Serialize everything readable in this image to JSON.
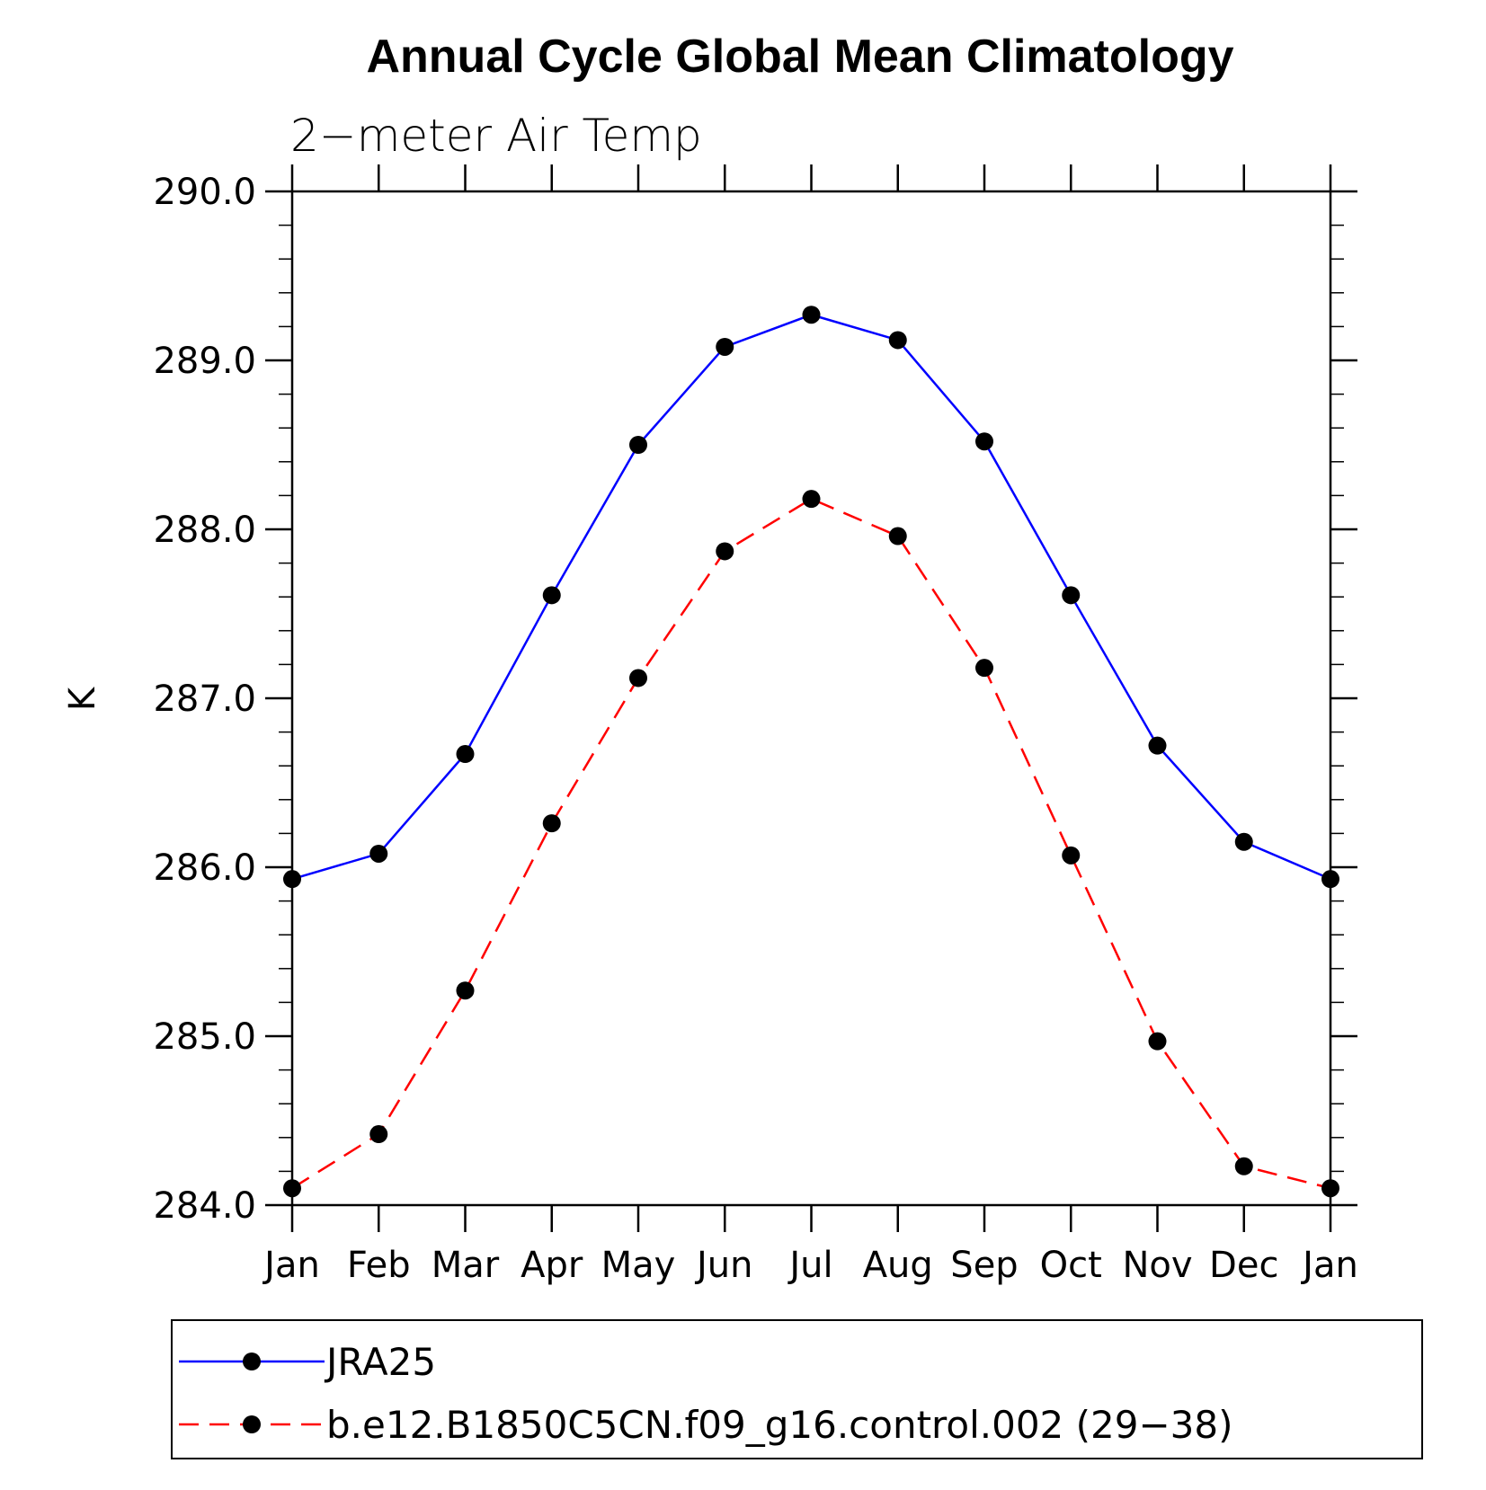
{
  "chart_data": {
    "type": "line",
    "title": "Annual Cycle Global Mean Climatology",
    "subtitle": "2−meter Air Temp",
    "ylabel": "K",
    "xlabel": "",
    "categories": [
      "Jan",
      "Feb",
      "Mar",
      "Apr",
      "May",
      "Jun",
      "Jul",
      "Aug",
      "Sep",
      "Oct",
      "Nov",
      "Dec",
      "Jan"
    ],
    "ylim": [
      284.0,
      290.0
    ],
    "yticks": [
      "284.0",
      "285.0",
      "286.0",
      "287.0",
      "288.0",
      "289.0",
      "290.0"
    ],
    "grid": false,
    "legend_position": "bottom",
    "series": [
      {
        "name": "JRA25",
        "color": "#0000ff",
        "line_style": "solid",
        "marker": "filled-circle",
        "values": [
          285.93,
          286.08,
          286.67,
          287.61,
          288.5,
          289.08,
          289.27,
          289.12,
          288.52,
          287.61,
          286.72,
          286.15,
          285.93
        ]
      },
      {
        "name": "b.e12.B1850C5CN.f09_g16.control.002 (29−38)",
        "color": "#ff0000",
        "line_style": "dashed",
        "marker": "filled-circle",
        "values": [
          284.1,
          284.42,
          285.27,
          286.26,
          287.12,
          287.87,
          288.18,
          287.96,
          287.18,
          286.07,
          284.97,
          284.23,
          284.1
        ]
      }
    ]
  }
}
